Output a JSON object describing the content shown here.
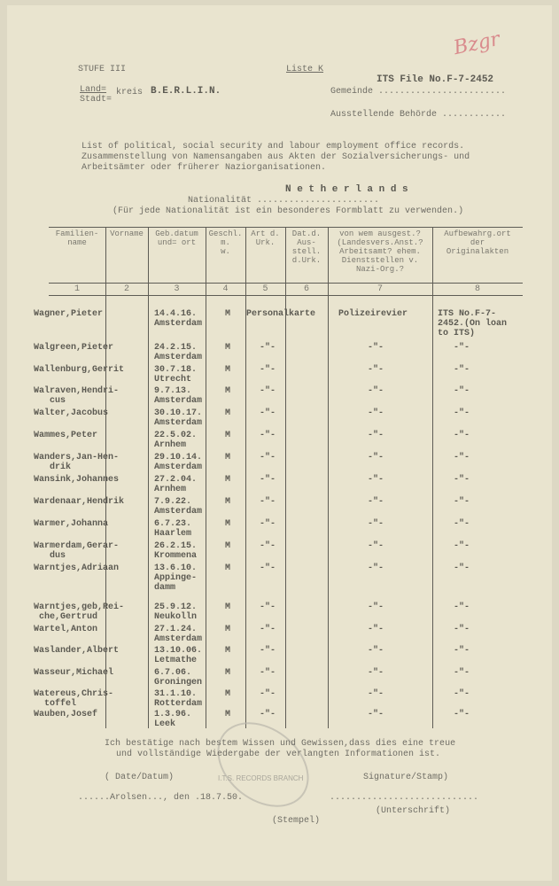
{
  "header": {
    "stufe": "STUFE III",
    "liste": "Liste K",
    "file_no": "ITS File No.F-7-2452",
    "handwritten_mark": "Bzgr",
    "land_label": "Land=",
    "stadt_label": "Stadt=",
    "kreis_label": "kreis",
    "kreis_value": "B.E.R.L.I.N.",
    "gemeinde_label": "Gemeinde ........................",
    "behoerde_label": "Ausstellende Behörde ............",
    "desc_line1": "List of political, social security and labour employment office records.",
    "desc_line2": "Zusammenstellung von Namensangaben aus Akten der Sozialversicherungs- und",
    "desc_line3": "Arbeitsämter oder früherer Naziorganisationen.",
    "nationality_value": "N e t h e r l a n d s",
    "nationality_label": "Nationalität .......................",
    "nationality_note": "(Für jede Nationalität ist ein besonderes Formblatt zu verwenden.)"
  },
  "table": {
    "columns": [
      {
        "label": "Familien-\nname",
        "number": "1"
      },
      {
        "label": "Vorname",
        "number": "2"
      },
      {
        "label": "Geb.datum\nund= ort",
        "number": "3"
      },
      {
        "label": "Geschl.\nm.\nw.",
        "number": "4"
      },
      {
        "label": "Art d.\nUrk.",
        "number": "5"
      },
      {
        "label": "Dat.d.\nAus-\nstell.\nd.Urk.",
        "number": "6"
      },
      {
        "label": "von wem ausgest.?\n(Landesvers.Anst.?\nArbeitsamt? ehem.\nDienststellen v.\nNazi-Org.?",
        "number": "7"
      },
      {
        "label": "Aufbewahrg.ort\nder\nOriginalakten",
        "number": "8"
      }
    ],
    "rows": [
      {
        "name": "Wagner,Pieter",
        "date": "14.4.16.",
        "place": "Amsterdam",
        "sex": "M",
        "art": "Personalkarte",
        "von": "Polizeirevier",
        "ort": "ITS No.F-7-\n2452.(On loan\nto ITS)"
      },
      {
        "name": "Walgreen,Pieter",
        "date": "24.2.15.",
        "place": "Amsterdam",
        "sex": "M",
        "art": "-\"-",
        "von": "-\"-",
        "ort": "-\"-"
      },
      {
        "name": "Wallenburg,Gerrit",
        "date": "30.7.18.",
        "place": "Utrecht",
        "sex": "M",
        "art": "-\"-",
        "von": "-\"-",
        "ort": "-\"-"
      },
      {
        "name": "Walraven,Hendri-\n   cus",
        "date": "9.7.13.",
        "place": "Amsterdam",
        "sex": "M",
        "art": "-\"-",
        "von": "-\"-",
        "ort": "-\"-"
      },
      {
        "name": "Walter,Jacobus",
        "date": "30.10.17.",
        "place": "Amsterdam",
        "sex": "M",
        "art": "-\"-",
        "von": "-\"-",
        "ort": "-\"-"
      },
      {
        "name": "Wammes,Peter",
        "date": "22.5.02.",
        "place": "Arnhem",
        "sex": "M",
        "art": "-\"-",
        "von": "-\"-",
        "ort": "-\"-"
      },
      {
        "name": "Wanders,Jan-Hen-\n   drik",
        "date": "29.10.14.",
        "place": "Amsterdam",
        "sex": "M",
        "art": "-\"-",
        "von": "-\"-",
        "ort": "-\"-"
      },
      {
        "name": "Wansink,Johannes",
        "date": "27.2.04.",
        "place": "Arnhem",
        "sex": "M",
        "art": "-\"-",
        "von": "-\"-",
        "ort": "-\"-"
      },
      {
        "name": "Wardenaar,Hendrik",
        "date": "7.9.22.",
        "place": "Amsterdam",
        "sex": "M",
        "art": "-\"-",
        "von": "-\"-",
        "ort": "-\"-"
      },
      {
        "name": "Warmer,Johanna",
        "date": "6.7.23.",
        "place": "Haarlem",
        "sex": "M",
        "art": "-\"-",
        "von": "-\"-",
        "ort": "-\"-"
      },
      {
        "name": "Warmerdam,Gerar-\n   dus",
        "date": "26.2.15.",
        "place": "Krommena",
        "sex": "M",
        "art": "-\"-",
        "von": "-\"-",
        "ort": "-\"-"
      },
      {
        "name": "Warntjes,Adriaan",
        "date": "13.6.10.",
        "place": "Appinge-\ndamm",
        "sex": "M",
        "art": "-\"-",
        "von": "-\"-",
        "ort": "-\"-"
      },
      {
        "name": "Warntjes,geb,Rei-\n che,Gertrud",
        "date": "25.9.12.",
        "place": "Neukolln",
        "sex": "M",
        "art": "-\"-",
        "von": "-\"-",
        "ort": "-\"-"
      },
      {
        "name": "Wartel,Anton",
        "date": "27.1.24.",
        "place": "Amsterdam",
        "sex": "M",
        "art": "-\"-",
        "von": "-\"-",
        "ort": "-\"-"
      },
      {
        "name": "Waslander,Albert",
        "date": "13.10.06.",
        "place": "Letmathe",
        "sex": "M",
        "art": "-\"-",
        "von": "-\"-",
        "ort": "-\"-"
      },
      {
        "name": "Wasseur,Michael",
        "date": "6.7.06.",
        "place": "Groningen",
        "sex": "M",
        "art": "-\"-",
        "von": "-\"-",
        "ort": "-\"-"
      },
      {
        "name": "Watereus,Chris-\n  toffel",
        "date": "31.1.10.",
        "place": "Rotterdam",
        "sex": "M",
        "art": "-\"-",
        "von": "-\"-",
        "ort": "-\"-"
      },
      {
        "name": "Wauben,Josef",
        "date": "1.3.96.",
        "place": "Leek",
        "sex": "M",
        "art": "-\"-",
        "von": "-\"-",
        "ort": "-\"-"
      }
    ]
  },
  "footer": {
    "confirm_line1": "Ich bestätige nach bestem Wissen und Gewissen,dass dies eine treue",
    "confirm_line2": "und vollständige Wiedergabe der verlangten Informationen ist.",
    "date_label": "( Date/Datum)",
    "signature_label": "Signature/Stamp)",
    "place_date": "......Arolsen..., den .18.7.50.",
    "signature_dots": "............................",
    "unterschrift": "(Unterschrift)",
    "stempel": "(Stempel)",
    "stamp_text": "I.T.S. RECORDS BRANCH"
  }
}
